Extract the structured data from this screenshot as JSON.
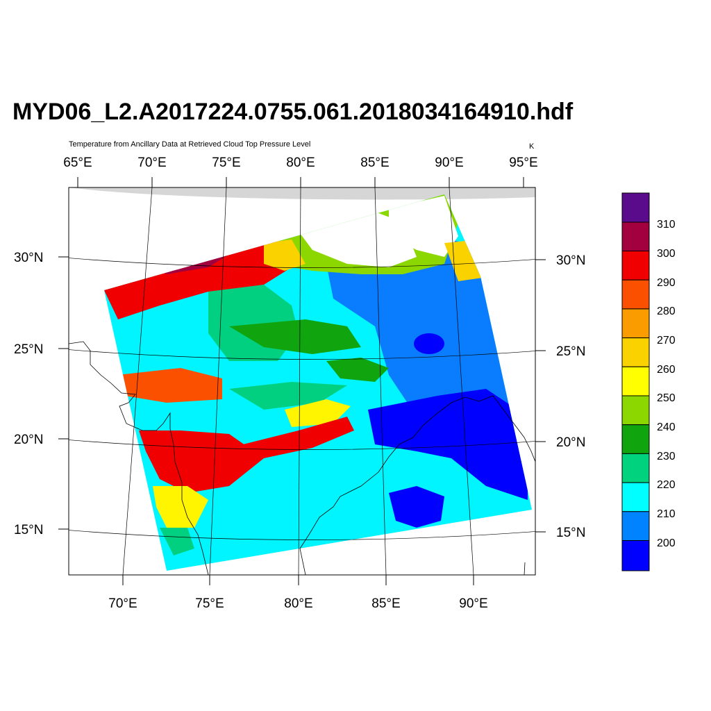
{
  "title": "MYD06_L2.A2017224.0755.061.2018034164910.hdf",
  "subtitle": "Temperature from Ancillary Data at Retrieved Cloud Top Pressure Level",
  "units": "K",
  "axes": {
    "top_lon_labels": [
      "65°E",
      "70°E",
      "75°E",
      "80°E",
      "85°E",
      "90°E",
      "95°E"
    ],
    "bottom_lon_labels": [
      "70°E",
      "75°E",
      "80°E",
      "85°E",
      "90°E"
    ],
    "left_lat_labels": [
      "30°N",
      "25°N",
      "20°N",
      "15°N"
    ],
    "right_lat_labels": [
      "30°N",
      "25°N",
      "20°N",
      "15°N"
    ]
  },
  "colorbar": {
    "labels": [
      "200",
      "210",
      "220",
      "230",
      "240",
      "250",
      "260",
      "270",
      "280",
      "290",
      "300",
      "310"
    ],
    "colors": [
      "#5a0b8c",
      "#a3003f",
      "#f00000",
      "#fa5000",
      "#fa9b00",
      "#fad200",
      "#ffff00",
      "#8cd700",
      "#10a50f",
      "#00d27d",
      "#00ffff",
      "#0083ff",
      "#0000ff"
    ]
  },
  "legend_levels": {
    "dark_blue": "#0000ff",
    "blue": "#0a7dff",
    "cyan": "#00f5ff",
    "teal": "#00d080",
    "green": "#10a50f",
    "yellow_green": "#8cd700",
    "yellow": "#fff500",
    "gold": "#fad200",
    "orange": "#fa9b00",
    "dark_orange": "#fa5000",
    "red": "#f00000",
    "crimson": "#a3003f"
  }
}
